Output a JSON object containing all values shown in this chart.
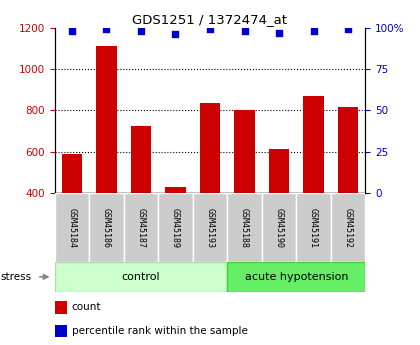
{
  "title": "GDS1251 / 1372474_at",
  "samples": [
    "GSM45184",
    "GSM45186",
    "GSM45187",
    "GSM45189",
    "GSM45193",
    "GSM45188",
    "GSM45190",
    "GSM45191",
    "GSM45192"
  ],
  "counts": [
    590,
    1110,
    725,
    430,
    835,
    800,
    615,
    870,
    815
  ],
  "percentiles": [
    98,
    99,
    98,
    96,
    99,
    98,
    97,
    98,
    99
  ],
  "bar_color": "#cc0000",
  "dot_color": "#0000cc",
  "ylim_left": [
    400,
    1200
  ],
  "ylim_right": [
    0,
    100
  ],
  "yticks_left": [
    400,
    600,
    800,
    1000,
    1200
  ],
  "yticks_right": [
    0,
    25,
    50,
    75,
    100
  ],
  "tick_label_color_left": "#cc0000",
  "tick_label_color_right": "#0000cc",
  "stress_label": "stress",
  "legend_count_label": "count",
  "legend_pct_label": "percentile rank within the sample",
  "control_color_light": "#ccffcc",
  "control_color_dark": "#aaddaa",
  "acute_color_light": "#66ee66",
  "acute_color_dark": "#44cc44",
  "sample_box_color": "#cccccc",
  "n_control": 5,
  "n_acute": 4
}
